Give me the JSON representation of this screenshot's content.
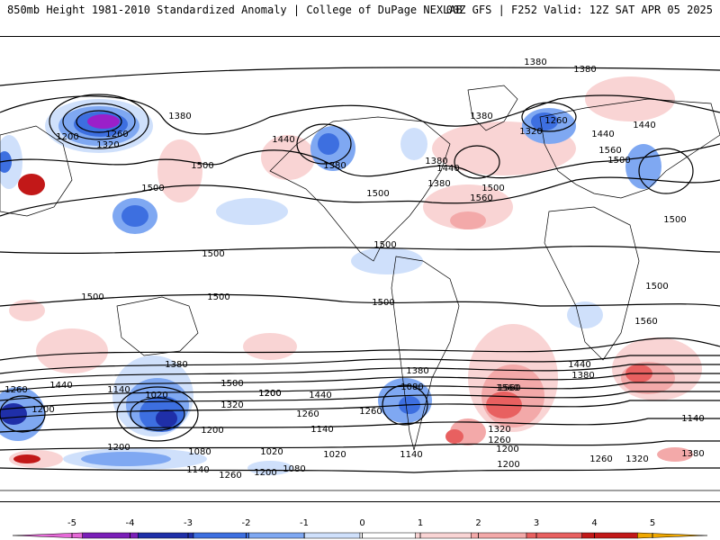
{
  "header": {
    "title": "850mb Height 1981-2010 Standardized Anomaly | College of DuPage NEXLAB",
    "run_info": "00Z GFS | F252 Valid: 12Z SAT APR 05 2025"
  },
  "colors": {
    "anomaly_scale": [
      {
        "min": -5,
        "max": -4,
        "color": "#9b1fc9"
      },
      {
        "min": -4,
        "max": -3,
        "color": "#1f2fa8"
      },
      {
        "min": -3,
        "max": -2,
        "color": "#3d6fe0"
      },
      {
        "min": -2,
        "max": -1,
        "color": "#7fa8f2"
      },
      {
        "min": -1,
        "max": -0.5,
        "color": "#cfe0fb"
      },
      {
        "min": 0.5,
        "max": 1,
        "color": "#f9d4d4"
      },
      {
        "min": 1,
        "max": 2,
        "color": "#f3a9a9"
      },
      {
        "min": 2,
        "max": 3,
        "color": "#e86060"
      },
      {
        "min": 3,
        "max": 4,
        "color": "#c21818"
      },
      {
        "min": 4,
        "max": 5,
        "color": "#f0a800"
      }
    ],
    "contour": "#000000",
    "coast": "#000000"
  },
  "colorbar": {
    "ticks": [
      "-5",
      "-4",
      "-3",
      "-2",
      "-1",
      "0",
      "1",
      "2",
      "3",
      "4",
      "5"
    ],
    "segments": [
      "#e66ad8",
      "#7a1fb8",
      "#1f2fa8",
      "#3d6fe0",
      "#7fa8f2",
      "#cfe0fb",
      "#ffffff",
      "#f9d4d4",
      "#f3a9a9",
      "#e86060",
      "#c21818",
      "#f0a800"
    ]
  },
  "contour_labels": [
    "1380",
    "1380",
    "1380",
    "1200",
    "1260",
    "1320",
    "1380",
    "1440",
    "1440",
    "1500",
    "1380",
    "1500",
    "1380",
    "1440",
    "1380",
    "1500",
    "1560",
    "1320",
    "1260",
    "1440",
    "1560",
    "1500",
    "1500",
    "1500",
    "1500",
    "1500",
    "1500",
    "1500",
    "1500",
    "1560",
    "1500",
    "1440",
    "1380",
    "1260",
    "1440",
    "1200",
    "1140",
    "1020",
    "1260",
    "1200",
    "1380",
    "1500",
    "1320",
    "1200",
    "1440",
    "1560",
    "1260",
    "1380",
    "1080",
    "1140",
    "1020",
    "1200",
    "1080",
    "1020",
    "1200",
    "1140",
    "1260",
    "1200",
    "1080",
    "1140",
    "1560",
    "1320",
    "1260",
    "1200",
    "1200",
    "1260",
    "1320",
    "1380",
    "1140"
  ]
}
